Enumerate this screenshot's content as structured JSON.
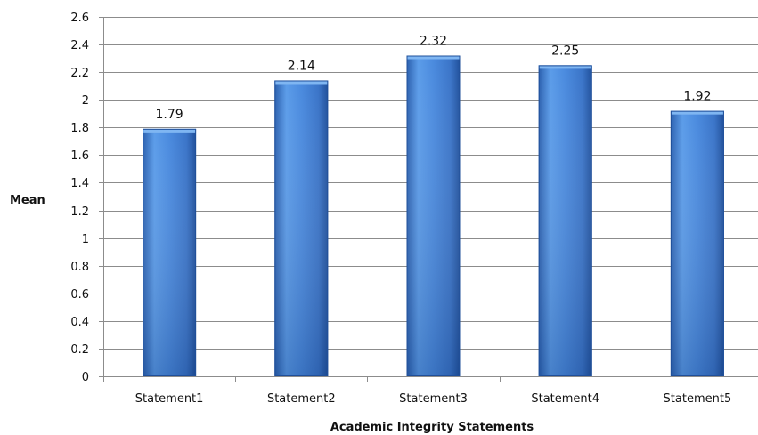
{
  "chart_data": {
    "type": "bar",
    "title": "",
    "xlabel": "Academic Integrity Statements",
    "ylabel": "Mean",
    "categories": [
      "Statement1",
      "Statement2",
      "Statement3",
      "Statement4",
      "Statement5"
    ],
    "values": [
      1.79,
      2.14,
      2.32,
      2.25,
      1.92
    ],
    "data_labels": [
      "1.79",
      "2.14",
      "2.32",
      "2.25",
      "1.92"
    ],
    "ylim": [
      0,
      2.6
    ],
    "y_ticks": [
      "0",
      "0.2",
      "0.4",
      "0.6",
      "0.8",
      "1",
      "1.2",
      "1.4",
      "1.6",
      "1.8",
      "2",
      "2.2",
      "2.4",
      "2.6"
    ],
    "grid": true,
    "legend": "none",
    "colors": {
      "bar_light": "#5a9be8",
      "bar_mid": "#3f7fd2",
      "bar_dark": "#1f4f9a",
      "bar_top": "#7fb6f2",
      "gridline": "#8c8c8c",
      "axis": "#8c8c8c",
      "text": "#111111"
    }
  }
}
